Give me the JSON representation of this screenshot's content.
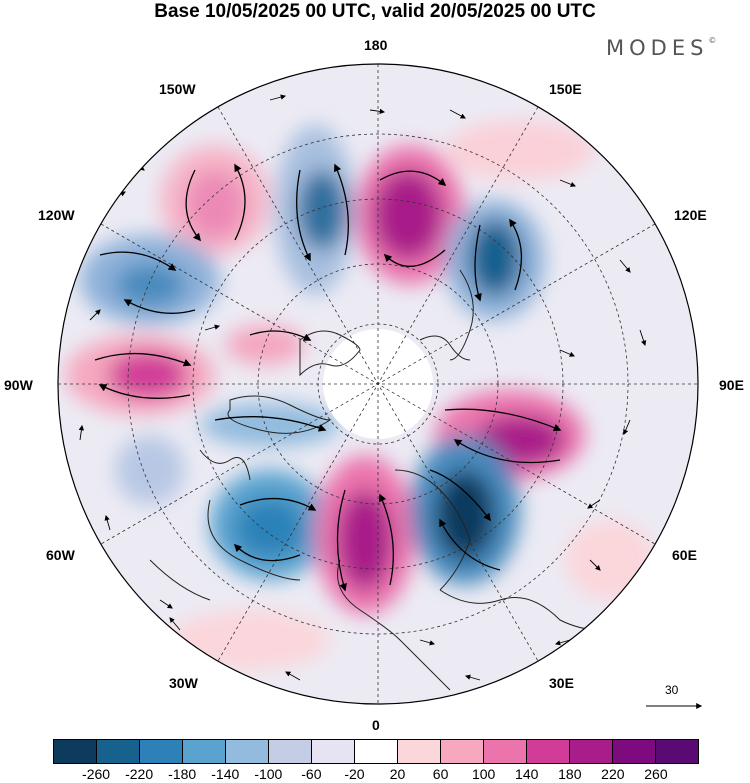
{
  "title": "Base 10/05/2025 00 UTC, valid 20/05/2025 00 UTC",
  "logo": {
    "text": "MODES",
    "mark": "©"
  },
  "longitude_labels": {
    "top": "180",
    "bottom": "0",
    "left": "90W",
    "right": "90E",
    "upper_left_1": "150W",
    "upper_left_2": "120W",
    "upper_right_1": "150E",
    "upper_right_2": "120E",
    "lower_left_1": "60W",
    "lower_left_2": "30W",
    "lower_right_1": "60E",
    "lower_right_2": "30E"
  },
  "reference_vector": {
    "value": "30"
  },
  "colorbar": {
    "colors": [
      "#0d3b5e",
      "#17618f",
      "#2c82b8",
      "#5aa3cf",
      "#92bbde",
      "#c4cce6",
      "#e6e4f2",
      "#ffffff",
      "#fbd6da",
      "#f6a8bf",
      "#ec74ad",
      "#d13c98",
      "#a81d89",
      "#7d0a7e",
      "#5a0a73"
    ],
    "labels": [
      "-260",
      "-220",
      "-180",
      "-140",
      "-100",
      "-60",
      "-20",
      "20",
      "60",
      "100",
      "140",
      "180",
      "220",
      "260"
    ]
  },
  "map_colors": {
    "land": "#222222",
    "grid": "#333333"
  }
}
